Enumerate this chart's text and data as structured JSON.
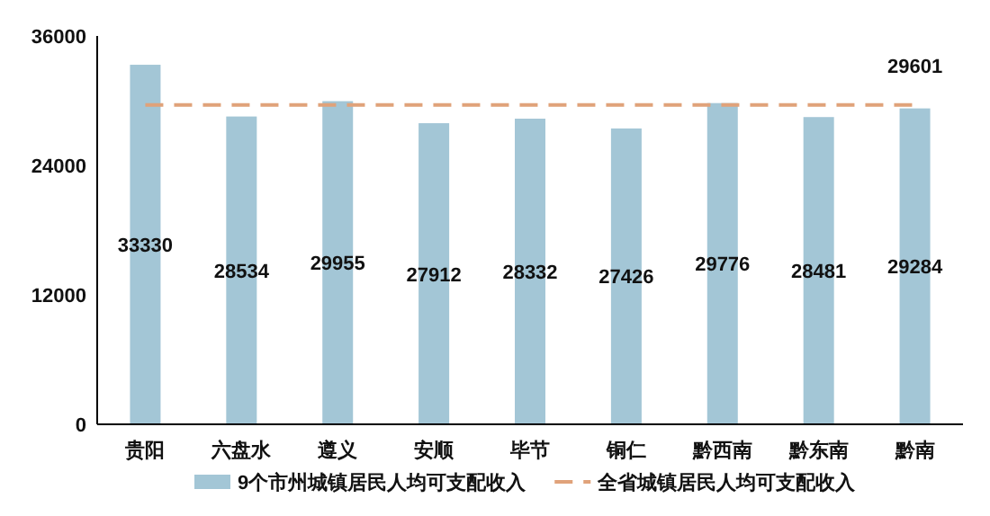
{
  "chart_data": {
    "type": "bar",
    "categories": [
      "贵阳",
      "六盘水",
      "遵义",
      "安顺",
      "毕节",
      "铜仁",
      "黔西南",
      "黔东南",
      "黔南"
    ],
    "series": [
      {
        "name": "9个市州城镇居民人均可支配收入",
        "color": "#a3c6d6",
        "values": [
          33330,
          28534,
          29955,
          27912,
          28332,
          27426,
          29776,
          28481,
          29284
        ],
        "value_labels": [
          "33330",
          "28534",
          "29955",
          "27912",
          "28332",
          "27426",
          "29776",
          "28481",
          "29284"
        ]
      },
      {
        "name": "全省城镇居民人均可支配收入",
        "type": "line",
        "color": "#e0a27a",
        "line_style": "dashed",
        "values": [
          29601,
          29601,
          29601,
          29601,
          29601,
          29601,
          29601,
          29601,
          29601
        ],
        "value_labels": [
          null,
          null,
          null,
          null,
          null,
          null,
          null,
          null,
          "29601"
        ]
      }
    ],
    "ylim": [
      0,
      36000
    ],
    "yticks": [
      0,
      12000,
      24000,
      36000
    ],
    "grid": false,
    "legend": "bottom"
  }
}
